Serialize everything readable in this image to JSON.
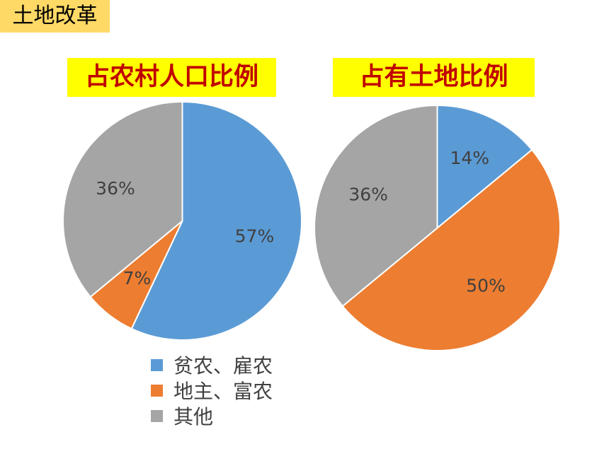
{
  "header": {
    "tag": "土地改革"
  },
  "colors": {
    "blue": "#5b9bd5",
    "orange": "#ed7d31",
    "gray": "#a5a5a5"
  },
  "chart_data": [
    {
      "type": "pie",
      "title": "占农村人口比例",
      "categories": [
        "贫农、雇农",
        "地主、富农",
        "其他"
      ],
      "values": [
        57,
        7,
        36
      ],
      "labels": [
        "57%",
        "7%",
        "36%"
      ]
    },
    {
      "type": "pie",
      "title": "占有土地比例",
      "categories": [
        "贫农、雇农",
        "地主、富农",
        "其他"
      ],
      "values": [
        14,
        50,
        36
      ],
      "labels": [
        "14%",
        "50%",
        "36%"
      ]
    }
  ],
  "legend": [
    "贫农、雇农",
    "地主、富农",
    "其他"
  ]
}
